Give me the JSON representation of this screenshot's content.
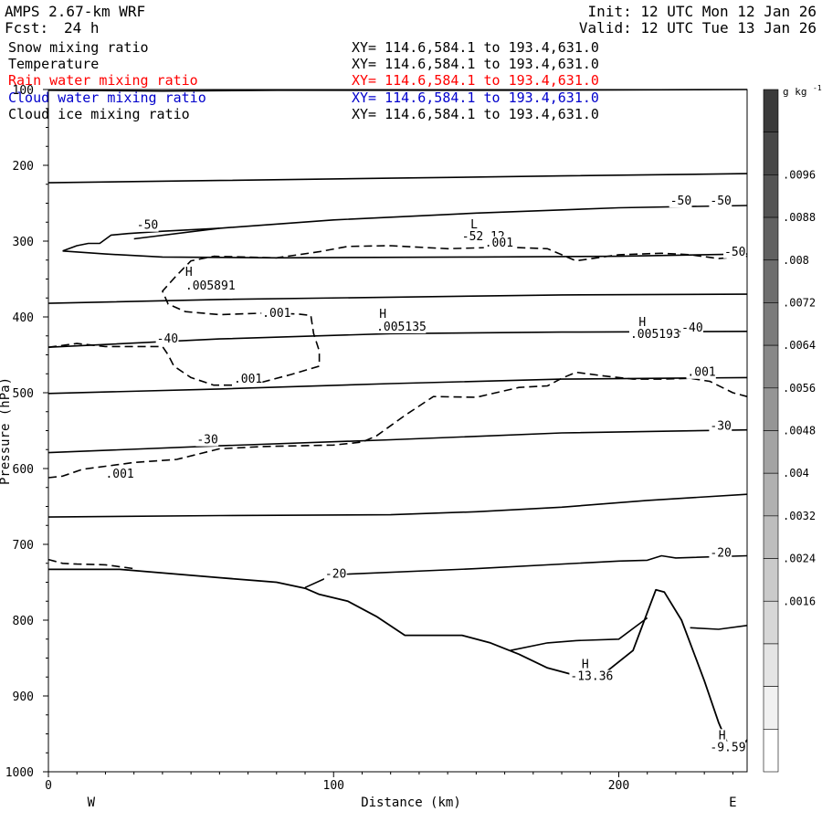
{
  "header": {
    "model": "AMPS 2.67-km WRF",
    "fcst_label": "Fcst:",
    "fcst_value": "24 h",
    "init": "Init: 12 UTC Mon 12 Jan 26",
    "valid": "Valid: 12 UTC Tue 13 Jan 26"
  },
  "fields": [
    {
      "name": "Snow mixing ratio",
      "xy": "XY= 114.6,584.1 to 193.4,631.0",
      "color": "#000000"
    },
    {
      "name": "Temperature",
      "xy": "XY= 114.6,584.1 to 193.4,631.0",
      "color": "#000000"
    },
    {
      "name": "Rain water mixing ratio",
      "xy": "XY= 114.6,584.1 to 193.4,631.0",
      "color": "#ff0000"
    },
    {
      "name": "Cloud water mixing ratio",
      "xy": "XY= 114.6,584.1 to 193.4,631.0",
      "color": "#0000cc"
    },
    {
      "name": "Cloud ice mixing ratio",
      "xy": "XY= 114.6,584.1 to 193.4,631.0",
      "color": "#000000"
    }
  ],
  "chart_data": {
    "type": "line",
    "xlabel": "Distance (km)",
    "ylabel": "Pressure (hPa)",
    "xlim": [
      0,
      245
    ],
    "ylim": [
      1000,
      100
    ],
    "x_ticks": [
      0,
      100,
      200
    ],
    "y_ticks": [
      100,
      200,
      300,
      400,
      500,
      600,
      700,
      800,
      900,
      1000
    ],
    "x_ends": {
      "left": "W",
      "right": "E"
    },
    "colorbar": {
      "unit": "g kg",
      "unit_exp": "-1",
      "labels": [
        ".0096",
        ".0088",
        ".008",
        ".0072",
        ".0064",
        ".0056",
        ".0048",
        ".004",
        ".0032",
        ".0024",
        ".0016"
      ],
      "shades": [
        "#3a3a3a",
        "#474747",
        "#545454",
        "#616161",
        "#6e6e6e",
        "#7b7b7b",
        "#888888",
        "#959595",
        "#a3a3a3",
        "#b0b0b0",
        "#bdbdbd",
        "#cacaca",
        "#d7d7d7",
        "#e4e4e4",
        "#f1f1f1",
        "#ffffff"
      ]
    },
    "temperature_contours": [
      {
        "points": [
          [
            0,
            101
          ],
          [
            40,
            102
          ],
          [
            80,
            101
          ],
          [
            160,
            101
          ],
          [
            245,
            100
          ]
        ]
      },
      {
        "points": [
          [
            0,
            223
          ],
          [
            60,
            220
          ],
          [
            120,
            217
          ],
          [
            180,
            214
          ],
          [
            245,
            211
          ]
        ]
      },
      {
        "points": [
          [
            30,
            297
          ],
          [
            60,
            283
          ],
          [
            100,
            272
          ],
          [
            150,
            263
          ],
          [
            200,
            256
          ],
          [
            245,
            253
          ]
        ]
      },
      {
        "points": [
          [
            5,
            313
          ],
          [
            10,
            306
          ],
          [
            14,
            303
          ],
          [
            18,
            303
          ],
          [
            22,
            292
          ],
          [
            28,
            290
          ],
          [
            40,
            287
          ],
          [
            60,
            283
          ]
        ]
      },
      {
        "points": [
          [
            5,
            313
          ],
          [
            20,
            317
          ],
          [
            40,
            321
          ],
          [
            80,
            322
          ],
          [
            150,
            321
          ],
          [
            200,
            320
          ],
          [
            245,
            317
          ]
        ]
      },
      {
        "points": [
          [
            0,
            382
          ],
          [
            60,
            377
          ],
          [
            120,
            374
          ],
          [
            180,
            371
          ],
          [
            245,
            370
          ]
        ]
      },
      {
        "points": [
          [
            0,
            440
          ],
          [
            60,
            429
          ],
          [
            120,
            422
          ],
          [
            180,
            420
          ],
          [
            245,
            419
          ]
        ]
      },
      {
        "points": [
          [
            0,
            501
          ],
          [
            60,
            495
          ],
          [
            120,
            488
          ],
          [
            180,
            482
          ],
          [
            245,
            480
          ]
        ]
      },
      {
        "points": [
          [
            0,
            579
          ],
          [
            60,
            570
          ],
          [
            120,
            562
          ],
          [
            180,
            553
          ],
          [
            245,
            549
          ]
        ]
      },
      {
        "points": [
          [
            0,
            664
          ],
          [
            60,
            662
          ],
          [
            120,
            661
          ],
          [
            150,
            657
          ],
          [
            180,
            651
          ],
          [
            210,
            642
          ],
          [
            245,
            634
          ]
        ]
      },
      {
        "points": [
          [
            90,
            757
          ],
          [
            100,
            740
          ],
          [
            150,
            732
          ],
          [
            200,
            722
          ],
          [
            210,
            721
          ],
          [
            215,
            715
          ],
          [
            220,
            718
          ],
          [
            245,
            715
          ]
        ]
      },
      {
        "points": [
          [
            225,
            810
          ],
          [
            235,
            812
          ],
          [
            245,
            807
          ]
        ]
      }
    ],
    "terrain": {
      "points": [
        [
          0,
          733
        ],
        [
          25,
          733
        ],
        [
          60,
          744
        ],
        [
          80,
          750
        ],
        [
          90,
          758
        ],
        [
          95,
          766
        ],
        [
          105,
          775
        ],
        [
          115,
          795
        ],
        [
          125,
          820
        ],
        [
          145,
          820
        ],
        [
          155,
          830
        ],
        [
          165,
          845
        ],
        [
          175,
          863
        ],
        [
          185,
          873
        ],
        [
          190,
          876
        ],
        [
          195,
          870
        ],
        [
          205,
          840
        ],
        [
          211,
          780
        ],
        [
          213,
          760
        ],
        [
          216,
          763
        ],
        [
          222,
          800
        ],
        [
          230,
          880
        ],
        [
          235,
          935
        ],
        [
          239,
          970
        ],
        [
          243,
          968
        ],
        [
          245,
          958
        ]
      ]
    },
    "terrain_inner": {
      "points": [
        [
          162,
          840
        ],
        [
          175,
          830
        ],
        [
          185,
          827
        ],
        [
          200,
          825
        ],
        [
          210,
          797
        ]
      ]
    },
    "snow_contours_dashed": [
      {
        "points": [
          [
            0,
            440
          ],
          [
            10,
            435
          ],
          [
            20,
            439
          ],
          [
            40,
            439
          ],
          [
            42,
            450
          ],
          [
            44,
            465
          ],
          [
            50,
            480
          ],
          [
            58,
            490
          ],
          [
            65,
            490
          ],
          [
            75,
            486
          ],
          [
            85,
            476
          ],
          [
            95,
            465
          ],
          [
            95,
            445
          ],
          [
            93,
            422
          ],
          [
            92,
            398
          ],
          [
            87,
            396
          ],
          [
            75,
            395
          ],
          [
            60,
            397
          ],
          [
            48,
            393
          ],
          [
            42,
            383
          ],
          [
            40,
            366
          ],
          [
            45,
            345
          ],
          [
            50,
            326
          ],
          [
            58,
            320
          ],
          [
            80,
            322
          ],
          [
            95,
            314
          ],
          [
            105,
            307
          ],
          [
            120,
            306
          ],
          [
            140,
            310
          ],
          [
            160,
            308
          ],
          [
            175,
            310
          ],
          [
            180,
            318
          ],
          [
            185,
            326
          ],
          [
            200,
            318
          ],
          [
            215,
            316
          ],
          [
            225,
            318
          ],
          [
            235,
            323
          ],
          [
            245,
            320
          ]
        ]
      },
      {
        "points": [
          [
            0,
            612
          ],
          [
            5,
            610
          ],
          [
            12,
            601
          ],
          [
            30,
            592
          ],
          [
            45,
            588
          ],
          [
            60,
            574
          ],
          [
            75,
            571
          ],
          [
            100,
            569
          ],
          [
            110,
            565
          ],
          [
            115,
            557
          ],
          [
            125,
            530
          ],
          [
            135,
            505
          ],
          [
            150,
            506
          ],
          [
            165,
            493
          ],
          [
            175,
            491
          ],
          [
            180,
            481
          ],
          [
            185,
            473
          ],
          [
            195,
            478
          ],
          [
            205,
            482
          ],
          [
            215,
            482
          ],
          [
            225,
            481
          ],
          [
            232,
            485
          ],
          [
            240,
            500
          ],
          [
            245,
            505
          ]
        ]
      },
      {
        "points": [
          [
            0,
            720
          ],
          [
            5,
            725
          ],
          [
            10,
            726
          ],
          [
            20,
            727
          ],
          [
            30,
            732
          ]
        ]
      }
    ],
    "annotations": [
      {
        "text": "-50",
        "x": 31,
        "y": 284
      },
      {
        "text": "-50",
        "x": 218,
        "y": 252
      },
      {
        "text": "-50",
        "x": 232,
        "y": 252
      },
      {
        "text": "-50",
        "x": 237,
        "y": 319
      },
      {
        "text": "L",
        "x": 148,
        "y": 283
      },
      {
        "text": "-52.12",
        "x": 145,
        "y": 299
      },
      {
        "text": ".001",
        "x": 153,
        "y": 307
      },
      {
        "text": "H",
        "x": 48,
        "y": 346
      },
      {
        "text": ".005891",
        "x": 48,
        "y": 364
      },
      {
        "text": ".001",
        "x": 75,
        "y": 400
      },
      {
        "text": "H",
        "x": 116,
        "y": 401
      },
      {
        "text": ".005135",
        "x": 115,
        "y": 418
      },
      {
        "text": "H",
        "x": 207,
        "y": 412
      },
      {
        "text": ".005193",
        "x": 204,
        "y": 428
      },
      {
        "text": "-40",
        "x": 38,
        "y": 434
      },
      {
        "text": "-40",
        "x": 222,
        "y": 419
      },
      {
        "text": ".001",
        "x": 65,
        "y": 487
      },
      {
        "text": ".001",
        "x": 224,
        "y": 478
      },
      {
        "text": "-30",
        "x": 52,
        "y": 567
      },
      {
        "text": "-30",
        "x": 232,
        "y": 549
      },
      {
        "text": ".001",
        "x": 20,
        "y": 612
      },
      {
        "text": "-20",
        "x": 97,
        "y": 744
      },
      {
        "text": "-20",
        "x": 232,
        "y": 716
      },
      {
        "text": "H",
        "x": 187,
        "y": 863
      },
      {
        "text": "-13.36",
        "x": 183,
        "y": 879
      },
      {
        "text": "H",
        "x": 235,
        "y": 957
      },
      {
        "text": "-9.59",
        "x": 232,
        "y": 973
      }
    ]
  }
}
